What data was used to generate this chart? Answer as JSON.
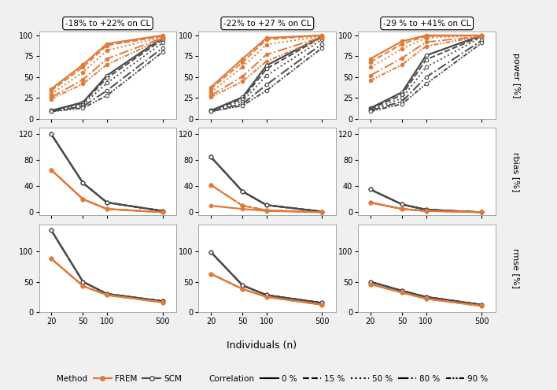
{
  "col_titles": [
    "-18% to +22% on CL",
    "-22% to +27 % on CL",
    "-29 % to +41% on CL"
  ],
  "row_labels": [
    "power [%]",
    "rbias [%]",
    "rmse [%]"
  ],
  "x": [
    20,
    50,
    100,
    500
  ],
  "method_colors": {
    "FREM": "#E07B39",
    "SCM": "#4A4A4A"
  },
  "correlations": [
    "0%",
    "15%",
    "50%",
    "80%",
    "90%"
  ],
  "bg_color": "#F0F0F0",
  "panel_bg": "#FFFFFF",
  "power": {
    "col0": {
      "FREM": {
        "0%": [
          36,
          65,
          90,
          100
        ],
        "15%": [
          34,
          62,
          88,
          99
        ],
        "50%": [
          30,
          56,
          82,
          98
        ],
        "80%": [
          26,
          47,
          72,
          97
        ],
        "90%": [
          24,
          42,
          65,
          96
        ]
      },
      "SCM": {
        "0%": [
          10,
          20,
          52,
          97
        ],
        "15%": [
          10,
          19,
          49,
          95
        ],
        "50%": [
          9,
          17,
          43,
          91
        ],
        "80%": [
          9,
          15,
          34,
          85
        ],
        "90%": [
          9,
          13,
          28,
          80
        ]
      }
    },
    "col1": {
      "FREM": {
        "0%": [
          38,
          72,
          97,
          100
        ],
        "15%": [
          36,
          68,
          95,
          100
        ],
        "50%": [
          32,
          62,
          89,
          99
        ],
        "80%": [
          28,
          51,
          77,
          98
        ],
        "90%": [
          26,
          45,
          69,
          97
        ]
      },
      "SCM": {
        "0%": [
          10,
          26,
          64,
          99
        ],
        "15%": [
          10,
          24,
          60,
          98
        ],
        "50%": [
          10,
          21,
          52,
          95
        ],
        "80%": [
          9,
          18,
          41,
          90
        ],
        "90%": [
          9,
          16,
          34,
          85
        ]
      }
    },
    "col2": {
      "FREM": {
        "0%": [
          72,
          93,
          100,
          100
        ],
        "15%": [
          68,
          90,
          99,
          100
        ],
        "50%": [
          62,
          84,
          97,
          100
        ],
        "80%": [
          52,
          73,
          92,
          99
        ],
        "90%": [
          46,
          65,
          87,
          99
        ]
      },
      "SCM": {
        "0%": [
          13,
          32,
          76,
          100
        ],
        "15%": [
          12,
          29,
          71,
          99
        ],
        "50%": [
          11,
          25,
          62,
          98
        ],
        "80%": [
          10,
          21,
          50,
          94
        ],
        "90%": [
          9,
          18,
          42,
          91
        ]
      }
    }
  },
  "rbias": {
    "col0": {
      "FREM": {
        "0%": [
          65,
          20,
          5,
          0
        ],
        "15%": [
          65,
          20,
          5,
          0
        ],
        "50%": [
          65,
          20,
          5,
          0
        ],
        "80%": [
          65,
          20,
          5,
          0
        ],
        "90%": [
          65,
          20,
          5,
          0
        ]
      },
      "SCM": {
        "0%": [
          120,
          45,
          15,
          2
        ],
        "15%": [
          120,
          45,
          15,
          2
        ],
        "50%": [
          120,
          45,
          15,
          2
        ],
        "80%": [
          120,
          45,
          15,
          2
        ],
        "90%": [
          120,
          45,
          15,
          2
        ]
      }
    },
    "col1": {
      "FREM": {
        "0%": [
          10,
          5,
          2,
          0
        ],
        "15%": [
          42,
          10,
          3,
          0
        ],
        "50%": [
          42,
          10,
          3,
          0
        ],
        "80%": [
          42,
          10,
          3,
          0
        ],
        "90%": [
          42,
          10,
          3,
          0
        ]
      },
      "SCM": {
        "0%": [
          85,
          32,
          11,
          1
        ],
        "15%": [
          85,
          32,
          11,
          1
        ],
        "50%": [
          85,
          32,
          11,
          1
        ],
        "80%": [
          85,
          32,
          11,
          1
        ],
        "90%": [
          85,
          32,
          11,
          1
        ]
      }
    },
    "col2": {
      "FREM": {
        "0%": [
          15,
          5,
          2,
          0
        ],
        "15%": [
          15,
          5,
          2,
          0
        ],
        "50%": [
          15,
          5,
          2,
          0
        ],
        "80%": [
          15,
          5,
          2,
          0
        ],
        "90%": [
          15,
          5,
          2,
          0
        ]
      },
      "SCM": {
        "0%": [
          35,
          12,
          4,
          0
        ],
        "15%": [
          35,
          12,
          4,
          0
        ],
        "50%": [
          35,
          12,
          4,
          0
        ],
        "80%": [
          35,
          12,
          4,
          0
        ],
        "90%": [
          35,
          12,
          4,
          0
        ]
      }
    }
  },
  "rmse": {
    "col0": {
      "FREM": {
        "0%": [
          88,
          43,
          28,
          16
        ],
        "15%": [
          88,
          43,
          28,
          16
        ],
        "50%": [
          88,
          43,
          28,
          16
        ],
        "80%": [
          88,
          43,
          28,
          16
        ],
        "90%": [
          88,
          43,
          28,
          16
        ]
      },
      "SCM": {
        "0%": [
          135,
          50,
          30,
          18
        ],
        "15%": [
          135,
          50,
          30,
          18
        ],
        "50%": [
          135,
          50,
          30,
          18
        ],
        "80%": [
          135,
          50,
          30,
          18
        ],
        "90%": [
          135,
          50,
          30,
          18
        ]
      }
    },
    "col1": {
      "FREM": {
        "0%": [
          63,
          38,
          25,
          12
        ],
        "15%": [
          63,
          38,
          25,
          12
        ],
        "50%": [
          63,
          38,
          25,
          12
        ],
        "80%": [
          63,
          38,
          25,
          12
        ],
        "90%": [
          63,
          38,
          25,
          12
        ]
      },
      "SCM": {
        "0%": [
          99,
          44,
          28,
          15
        ],
        "15%": [
          99,
          44,
          28,
          15
        ],
        "50%": [
          99,
          44,
          28,
          15
        ],
        "80%": [
          99,
          44,
          28,
          15
        ],
        "90%": [
          99,
          44,
          28,
          15
        ]
      }
    },
    "col2": {
      "FREM": {
        "0%": [
          46,
          32,
          22,
          10
        ],
        "15%": [
          46,
          32,
          22,
          10
        ],
        "50%": [
          46,
          32,
          22,
          10
        ],
        "80%": [
          46,
          32,
          22,
          10
        ],
        "90%": [
          46,
          32,
          22,
          10
        ]
      },
      "SCM": {
        "0%": [
          50,
          35,
          25,
          12
        ],
        "15%": [
          50,
          35,
          25,
          12
        ],
        "50%": [
          50,
          35,
          25,
          12
        ],
        "80%": [
          50,
          35,
          25,
          12
        ],
        "90%": [
          50,
          35,
          25,
          12
        ]
      }
    }
  },
  "power_ylim": [
    0,
    105
  ],
  "rbias_ylim": [
    -5,
    130
  ],
  "rmse_ylim": [
    0,
    145
  ],
  "power_yticks": [
    0,
    25,
    50,
    75,
    100
  ],
  "rbias_yticks": [
    0,
    40,
    80,
    120
  ],
  "rmse_yticks": [
    0,
    50,
    100
  ]
}
